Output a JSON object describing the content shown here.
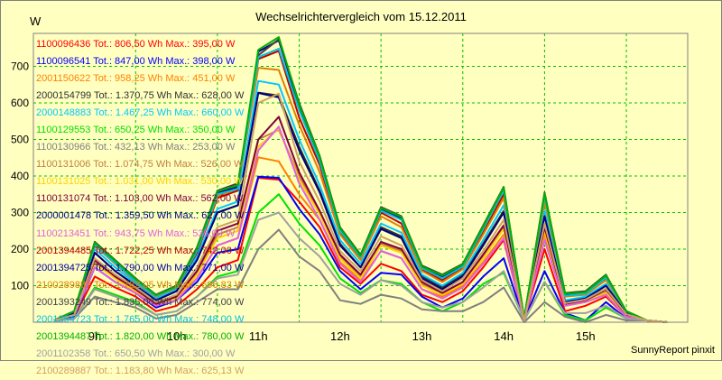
{
  "title": "Wechselrichtervergleich vom 15.12.2011",
  "unit_label": "W",
  "footer": "SunnyReport pinxit",
  "chart_data": {
    "type": "line",
    "title": "Wechselrichtervergleich vom 15.12.2011",
    "ylabel": "W",
    "xlabel": "",
    "x_ticks": [
      "9h",
      "10h",
      "11h",
      "12h",
      "13h",
      "14h",
      "15h"
    ],
    "x_tick_hours": [
      9,
      10,
      11,
      12,
      13,
      14,
      15
    ],
    "x_range_hours": [
      8.25,
      16.25
    ],
    "y_ticks": [
      100,
      200,
      300,
      400,
      500,
      600,
      700
    ],
    "ylim": [
      0,
      790
    ],
    "grid": true,
    "grid_color": "#00c000",
    "plot_background": "#ffffc0",
    "x": [
      8.5,
      8.75,
      9.0,
      9.25,
      9.5,
      9.75,
      10.0,
      10.25,
      10.5,
      10.75,
      11.0,
      11.25,
      11.5,
      11.75,
      12.0,
      12.25,
      12.5,
      12.75,
      13.0,
      13.25,
      13.5,
      13.75,
      14.0,
      14.25,
      14.5,
      14.75,
      15.0,
      15.25,
      15.5,
      15.75,
      16.0
    ],
    "series": [
      {
        "name": "1100096436 Tot.: 806,50 Wh Max.: 395,00 W",
        "color": "#ff0000",
        "values": [
          5,
          15,
          125,
          95,
          70,
          30,
          45,
          90,
          150,
          170,
          395,
          390,
          330,
          260,
          150,
          105,
          160,
          140,
          75,
          55,
          85,
          150,
          225,
          5,
          200,
          30,
          45,
          70,
          15,
          5,
          0
        ]
      },
      {
        "name": "1100096541 Tot.: 847,00 Wh Max.: 398,00 W",
        "color": "#0000ff",
        "values": [
          5,
          15,
          150,
          110,
          80,
          40,
          60,
          110,
          190,
          200,
          398,
          395,
          310,
          240,
          140,
          90,
          135,
          130,
          70,
          40,
          65,
          125,
          175,
          5,
          140,
          25,
          5,
          55,
          10,
          5,
          0
        ]
      },
      {
        "name": "2001150622 Tot.: 958,25 Wh Max.: 451,00 W",
        "color": "#ff8000",
        "values": [
          5,
          20,
          165,
          120,
          85,
          45,
          65,
          120,
          210,
          230,
          451,
          440,
          350,
          280,
          165,
          115,
          195,
          175,
          90,
          70,
          100,
          165,
          240,
          5,
          240,
          45,
          55,
          75,
          15,
          5,
          0
        ]
      },
      {
        "name": "2000154799 Tot.: 1.370,75 Wh Max.: 628,00 W",
        "color": "#303030",
        "values": [
          5,
          25,
          190,
          140,
          100,
          60,
          85,
          170,
          300,
          320,
          628,
          620,
          480,
          360,
          215,
          150,
          260,
          235,
          125,
          95,
          130,
          215,
          305,
          10,
          295,
          55,
          65,
          100,
          25,
          5,
          0
        ]
      },
      {
        "name": "2000148883 Tot.: 1.467,25 Wh Max.: 660,00 W",
        "color": "#00c8ff",
        "values": [
          5,
          30,
          200,
          150,
          105,
          65,
          90,
          180,
          310,
          330,
          660,
          650,
          500,
          375,
          225,
          160,
          270,
          245,
          130,
          100,
          135,
          225,
          320,
          10,
          305,
          60,
          70,
          105,
          25,
          5,
          0
        ]
      },
      {
        "name": "1100129553 Tot.: 650,25 Wh Max.: 350,00 W",
        "color": "#00e000",
        "values": [
          5,
          10,
          95,
          75,
          55,
          20,
          30,
          70,
          125,
          140,
          300,
          350,
          270,
          210,
          120,
          80,
          115,
          105,
          55,
          30,
          55,
          105,
          135,
          5,
          110,
          20,
          5,
          40,
          10,
          5,
          0
        ]
      },
      {
        "name": "1100130966 Tot.: 432,13 Wh Max.: 253,00 W",
        "color": "#808080",
        "values": [
          3,
          10,
          70,
          55,
          40,
          10,
          20,
          55,
          90,
          90,
          200,
          253,
          180,
          140,
          60,
          50,
          75,
          65,
          35,
          30,
          30,
          55,
          95,
          0,
          55,
          15,
          0,
          20,
          5,
          5,
          0
        ]
      },
      {
        "name": "1100131006 Tot.: 1.074,75 Wh Max.: 526,00 W",
        "color": "#c08040",
        "values": [
          5,
          20,
          165,
          125,
          90,
          50,
          70,
          135,
          240,
          260,
          500,
          526,
          400,
          300,
          180,
          125,
          215,
          195,
          105,
          80,
          110,
          180,
          260,
          5,
          255,
          50,
          60,
          85,
          20,
          5,
          0
        ]
      },
      {
        "name": "1100131025 Tot.: 1.031,00 Wh Max.: 530,00 W",
        "color": "#ffd000",
        "values": [
          5,
          20,
          160,
          120,
          85,
          50,
          65,
          130,
          230,
          250,
          480,
          530,
          390,
          295,
          175,
          120,
          210,
          190,
          100,
          75,
          105,
          175,
          255,
          5,
          250,
          45,
          55,
          80,
          20,
          5,
          0
        ]
      },
      {
        "name": "1100131074 Tot.: 1.103,00 Wh Max.: 562,00 W",
        "color": "#800040",
        "values": [
          5,
          20,
          170,
          125,
          90,
          50,
          70,
          140,
          250,
          270,
          500,
          562,
          410,
          305,
          185,
          130,
          220,
          200,
          110,
          80,
          110,
          185,
          265,
          5,
          260,
          50,
          60,
          90,
          20,
          5,
          0
        ]
      },
      {
        "name": "2000001478 Tot.: 1.359,50 Wh Max.: 627,00 W",
        "color": "#000080",
        "values": [
          5,
          25,
          190,
          140,
          100,
          60,
          85,
          170,
          300,
          320,
          627,
          615,
          470,
          355,
          210,
          150,
          255,
          230,
          120,
          90,
          125,
          210,
          300,
          10,
          290,
          55,
          65,
          100,
          25,
          5,
          0
        ]
      },
      {
        "name": "1100213451 Tot.: 943,75 Wh Max.: 535,00 W",
        "color": "#e060e0",
        "values": [
          5,
          20,
          150,
          110,
          80,
          45,
          60,
          120,
          210,
          230,
          470,
          535,
          380,
          280,
          160,
          110,
          195,
          175,
          90,
          65,
          95,
          160,
          230,
          5,
          225,
          45,
          55,
          75,
          15,
          5,
          0
        ]
      },
      {
        "name": "2001394485 Tot.: 1.722,25 Wh Max.: 742,00 W",
        "color": "#c00000",
        "values": [
          5,
          30,
          210,
          160,
          110,
          70,
          95,
          190,
          340,
          360,
          720,
          742,
          560,
          430,
          245,
          175,
          300,
          270,
          145,
          115,
          150,
          245,
          350,
          10,
          340,
          70,
          80,
          120,
          30,
          5,
          0
        ]
      },
      {
        "name": "2001394725 Tot.: 1.790,00 Wh Max.: 771,00 W",
        "color": "#0000a0",
        "values": [
          5,
          30,
          215,
          165,
          115,
          75,
          100,
          200,
          355,
          370,
          740,
          771,
          590,
          450,
          255,
          180,
          310,
          285,
          150,
          125,
          155,
          260,
          365,
          10,
          350,
          75,
          80,
          125,
          30,
          5,
          0
        ]
      },
      {
        "name": "2100289887 Tot.: 1.782,05 Wh Max.: 696,83 W",
        "color": "#e08000",
        "values": [
          5,
          30,
          210,
          160,
          110,
          70,
          95,
          195,
          345,
          365,
          696,
          690,
          540,
          410,
          240,
          170,
          290,
          260,
          140,
          110,
          145,
          240,
          340,
          10,
          330,
          70,
          75,
          115,
          30,
          5,
          0
        ]
      },
      {
        "name": "2001393249 Tot.: 1.835,00 Wh Max.: 774,00 W",
        "color": "#404040",
        "values": [
          5,
          30,
          220,
          170,
          120,
          75,
          100,
          205,
          360,
          380,
          730,
          774,
          600,
          455,
          260,
          185,
          315,
          290,
          155,
          130,
          160,
          265,
          370,
          10,
          355,
          80,
          85,
          130,
          30,
          5,
          0
        ]
      },
      {
        "name": "2001394723 Tot.: 1.765,00 Wh Max.: 748,00 W",
        "color": "#00c0e0",
        "values": [
          5,
          30,
          212,
          162,
          112,
          72,
          97,
          195,
          350,
          365,
          725,
          748,
          580,
          440,
          250,
          178,
          305,
          280,
          148,
          120,
          152,
          255,
          360,
          10,
          345,
          72,
          78,
          122,
          30,
          5,
          0
        ]
      },
      {
        "name": "2001394487 Tot.: 1.820,00 Wh Max.: 780,00 W",
        "color": "#00b000",
        "values": [
          5,
          30,
          218,
          168,
          118,
          74,
          98,
          202,
          358,
          375,
          745,
          780,
          595,
          452,
          258,
          182,
          312,
          288,
          152,
          128,
          158,
          262,
          368,
          10,
          352,
          78,
          82,
          128,
          30,
          5,
          0
        ]
      },
      {
        "name": "2001102358 Tot.: 650,50 Wh Max.: 300,00 W",
        "color": "#a0a0a0",
        "values": [
          3,
          10,
          90,
          70,
          50,
          20,
          30,
          70,
          120,
          130,
          280,
          300,
          230,
          180,
          105,
          75,
          115,
          100,
          55,
          40,
          55,
          95,
          140,
          5,
          110,
          25,
          25,
          45,
          10,
          5,
          0
        ]
      },
      {
        "name": "2100289887 Tot.: 1.183,80 Wh Max.: 625,13 W",
        "color": "#d0a060",
        "values": [
          5,
          20,
          175,
          130,
          95,
          55,
          75,
          150,
          260,
          280,
          600,
          625,
          440,
          330,
          195,
          140,
          235,
          210,
          115,
          85,
          120,
          195,
          280,
          5,
          270,
          52,
          62,
          92,
          22,
          5,
          0
        ]
      }
    ]
  },
  "legend_visible": [
    {
      "text": "1100096436 Tot.: 806,50 Wh Max.: 395,00 W",
      "color": "#ff0000"
    },
    {
      "text": "1100096541 Tot.: 847,00 Wh Max.: 398,00 W",
      "color": "#0000ff"
    },
    {
      "text": "2001150622 Tot.: 958,25 Wh Max.: 451,00 W",
      "color": "#ff8000"
    },
    {
      "text": "2000154799 Tot.: 1.370,75 Wh Max.: 628,00 W",
      "color": "#303030"
    },
    {
      "text": "2000148883 Tot.: 1.467,25 Wh Max.: 660,00 W",
      "color": "#00c8ff"
    },
    {
      "text": "1100129553 Tot.: 650,25 Wh Max.: 350,00 W",
      "color": "#00e000"
    },
    {
      "text": "1100130966 Tot.: 432,13 Wh Max.: 253,00 W",
      "color": "#808080"
    },
    {
      "text": "1100131006 Tot.: 1.074,75 Wh Max.: 526,00 W",
      "color": "#c08040"
    },
    {
      "text": "1100131025 Tot.: 1.031,00 Wh Max.: 530,00 W",
      "color": "#ffd000"
    },
    {
      "text": "1100131074 Tot.: 1.103,00 Wh Max.: 562,00 W",
      "color": "#800040"
    },
    {
      "text": "2000001478 Tot.: 1.359,50 Wh Max.: 627,00 W",
      "color": "#000080"
    },
    {
      "text": "1100213451 Tot.: 943,75 Wh Max.: 535,00 W",
      "color": "#e060e0"
    },
    {
      "text": "2001394485 Tot.: 1.722,25 Wh Max.: 742,00 W",
      "color": "#c00000"
    },
    {
      "text": "2001394725 Tot.: 1.790,00 Wh Max.: 771,00 W",
      "color": "#0000a0"
    },
    {
      "text": "2100289887 Tot.: 1.782,05 Wh Max.: 696,83 W",
      "color": "#e08000"
    },
    {
      "text": "2001393249 Tot.: 1.835,00 Wh Max.: 774,00 W",
      "color": "#404040"
    },
    {
      "text": "2001394723 Tot.: 1.765,00 Wh Max.: 748,00 W",
      "color": "#00c0e0"
    },
    {
      "text": "2001394487 Tot.: 1.820,00 Wh Max.: 780,00 W",
      "color": "#00b000"
    },
    {
      "text": "2001102358 Tot.: 650,50 Wh Max.: 300,00 W",
      "color": "#a0a0a0"
    },
    {
      "text": "2100289887 Tot.: 1.183,80 Wh Max.: 625,13 W",
      "color": "#d0a060"
    }
  ]
}
